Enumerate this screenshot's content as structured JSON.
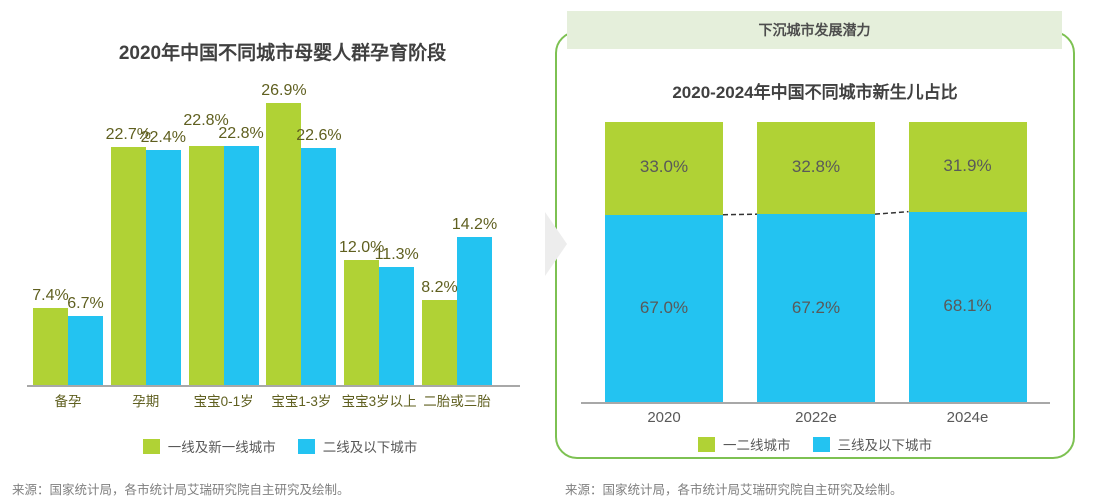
{
  "page": {
    "background": "#ffffff"
  },
  "panel": {
    "header": "下沉城市发展潜力",
    "border_color": "#7dc152",
    "header_bg": "#e5efdb"
  },
  "arrow_icon": {
    "name": "chevron-right-arrow",
    "color": "#ededed"
  },
  "chart_data": [
    {
      "type": "bar",
      "subtype": "grouped",
      "title": "2020年中国不同城市母婴人群孕育阶段",
      "categories": [
        "备孕",
        "孕期",
        "宝宝0-1岁",
        "宝宝1-3岁",
        "宝宝3岁以上",
        "二胎或三胎"
      ],
      "series": [
        {
          "name": "一线及新一线城市",
          "color": "#b0d235",
          "values": [
            7.4,
            22.7,
            22.8,
            26.9,
            12.0,
            8.2
          ]
        },
        {
          "name": "二线及以下城市",
          "color": "#23c3f1",
          "values": [
            6.7,
            22.4,
            22.8,
            22.6,
            11.3,
            14.2
          ]
        }
      ],
      "unit": "%",
      "xlabel": "",
      "ylabel": "",
      "ylim": [
        0,
        30
      ],
      "grid": false,
      "legend_position": "bottom",
      "value_labels": true,
      "source": "来源：国家统计局，各市统计局艾瑞研究院自主研究及绘制。"
    },
    {
      "type": "bar",
      "subtype": "stacked-100",
      "title": "2020-2024年中国不同城市新生儿占比",
      "categories": [
        "2020",
        "2022e",
        "2024e"
      ],
      "series": [
        {
          "name": "一二线城市",
          "color": "#b0d235",
          "position": "top",
          "values": [
            33.0,
            32.8,
            31.9
          ]
        },
        {
          "name": "三线及以下城市",
          "color": "#23c3f1",
          "position": "bottom",
          "values": [
            67.0,
            67.2,
            68.1
          ]
        }
      ],
      "unit": "%",
      "xlabel": "",
      "ylabel": "",
      "ylim": [
        0,
        100
      ],
      "grid": false,
      "legend_position": "bottom",
      "value_labels": true,
      "connector_lines": "dashed",
      "source": "来源：国家统计局，各市统计局艾瑞研究院自主研究及绘制。"
    }
  ]
}
